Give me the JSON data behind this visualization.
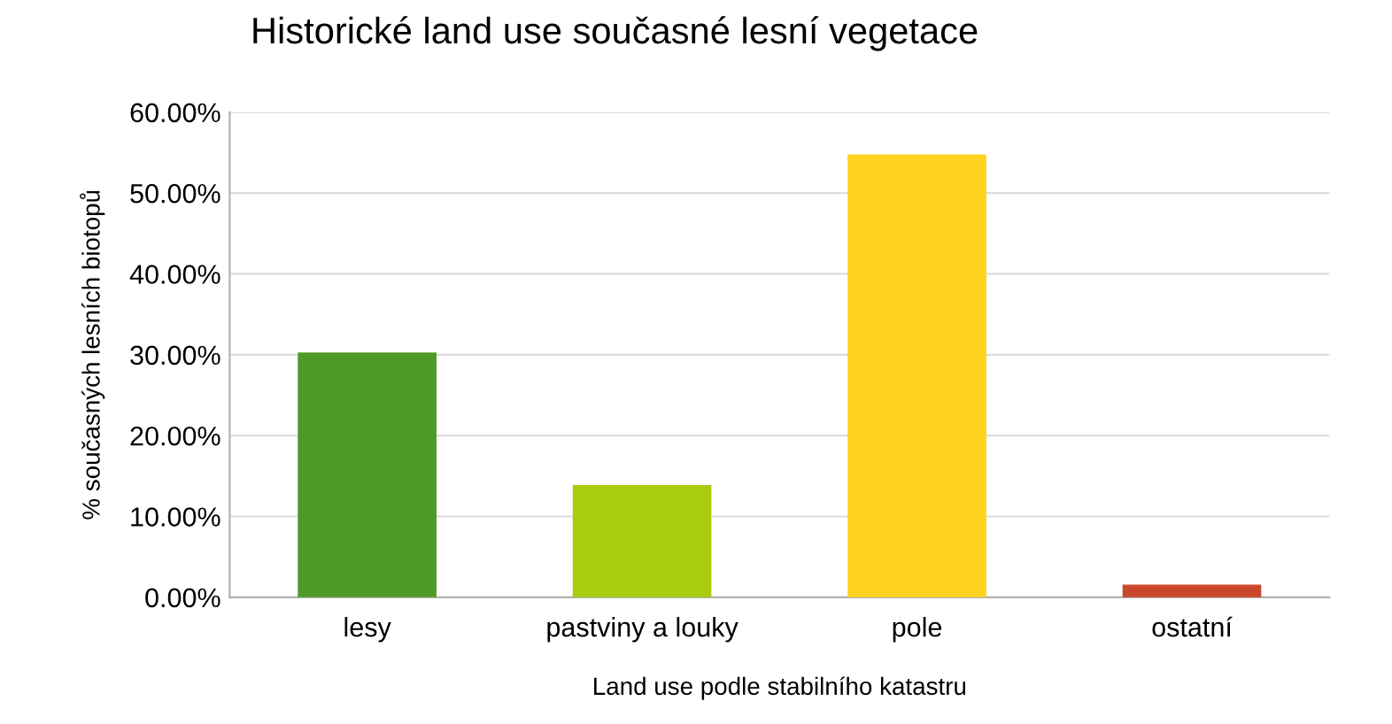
{
  "chart_data": {
    "type": "bar",
    "title": "Historické land use současné lesní vegetace",
    "xlabel": "Land use podle stabilního katastru",
    "ylabel": "% současných lesních biotopů",
    "categories": [
      "lesy",
      "pastviny a louky",
      "pole",
      "ostatní"
    ],
    "values": [
      30.2,
      13.8,
      54.7,
      1.5
    ],
    "colors": [
      "#4e9a26",
      "#aacc10",
      "#ffd320",
      "#c9482a"
    ],
    "ylim": [
      0,
      60
    ],
    "yticks": [
      {
        "value": 0,
        "label": "0.00%"
      },
      {
        "value": 10,
        "label": "10.00%"
      },
      {
        "value": 20,
        "label": "20.00%"
      },
      {
        "value": 30,
        "label": "30.00%"
      },
      {
        "value": 40,
        "label": "40.00%"
      },
      {
        "value": 50,
        "label": "50.00%"
      },
      {
        "value": 60,
        "label": "60.00%"
      }
    ],
    "grid": "y",
    "legend": false
  }
}
